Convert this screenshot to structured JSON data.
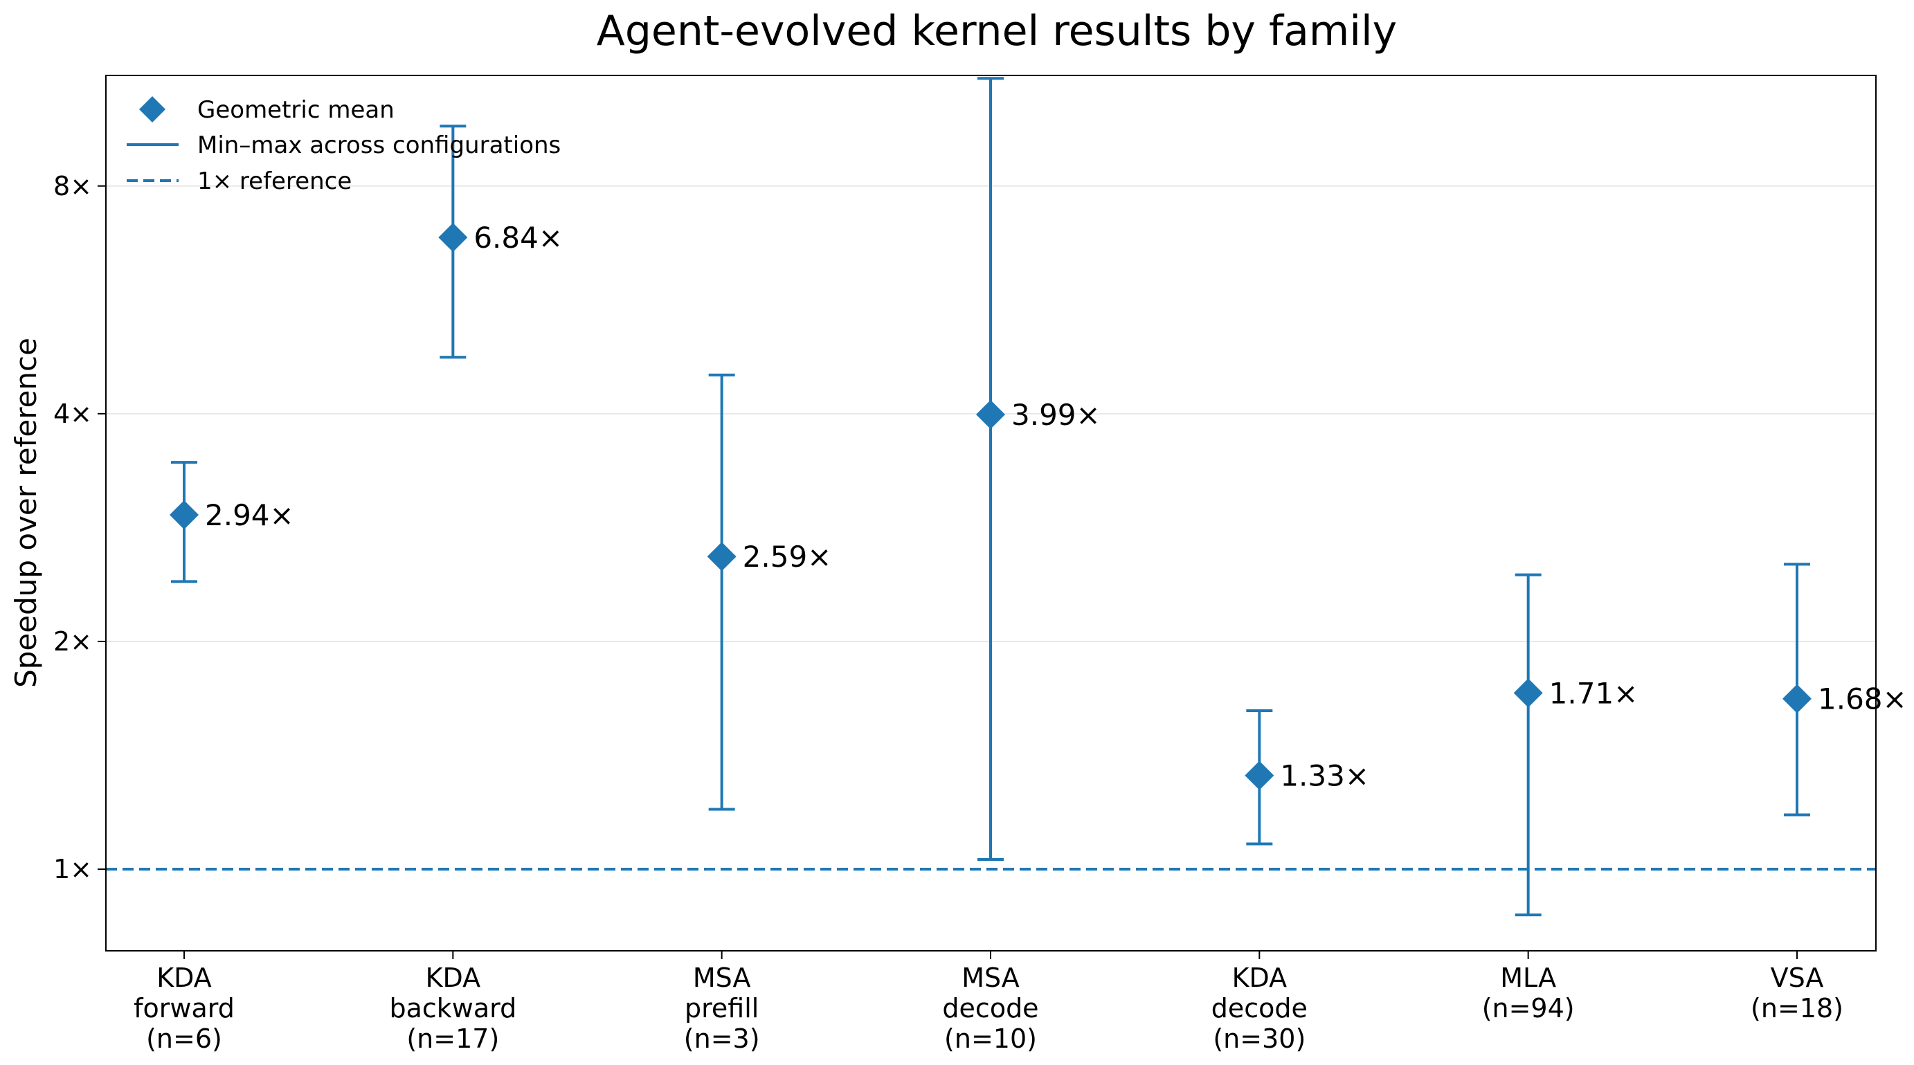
{
  "chart_data": {
    "type": "scatter",
    "title": "Agent-evolved kernel results by family",
    "xlabel": "",
    "ylabel": "Speedup over reference",
    "yscale": "log2",
    "ylim": [
      0.78,
      11.2
    ],
    "yticks": [
      {
        "value": 1,
        "label": "1×"
      },
      {
        "value": 2,
        "label": "2×"
      },
      {
        "value": 4,
        "label": "4×"
      },
      {
        "value": 8,
        "label": "8×"
      }
    ],
    "grid": "horizontal, light",
    "legend_position": "top-left",
    "color": "#1f77b4",
    "legend": {
      "mean": "Geometric mean",
      "range": "Min–max across configurations",
      "reference": "1× reference"
    },
    "reference_line": 1,
    "categories": [
      {
        "lines": [
          "KDA",
          "forward",
          "(n=6)"
        ],
        "mean": 2.94,
        "min": 2.4,
        "max": 3.45,
        "label": "2.94×"
      },
      {
        "lines": [
          "KDA",
          "backward",
          "(n=17)"
        ],
        "mean": 6.84,
        "min": 4.75,
        "max": 9.6,
        "label": "6.84×"
      },
      {
        "lines": [
          "MSA",
          "prefill",
          "(n=3)"
        ],
        "mean": 2.59,
        "min": 1.2,
        "max": 4.5,
        "label": "2.59×"
      },
      {
        "lines": [
          "MSA",
          "decode",
          "(n=10)"
        ],
        "mean": 3.99,
        "min": 1.03,
        "max": 11.1,
        "label": "3.99×"
      },
      {
        "lines": [
          "KDA",
          "decode",
          "(n=30)"
        ],
        "mean": 1.33,
        "min": 1.08,
        "max": 1.62,
        "label": "1.33×"
      },
      {
        "lines": [
          "MLA",
          "(n=94)"
        ],
        "mean": 1.71,
        "min": 0.87,
        "max": 2.45,
        "label": "1.71×"
      },
      {
        "lines": [
          "VSA",
          "(n=18)"
        ],
        "mean": 1.68,
        "min": 1.18,
        "max": 2.53,
        "label": "1.68×"
      }
    ]
  }
}
